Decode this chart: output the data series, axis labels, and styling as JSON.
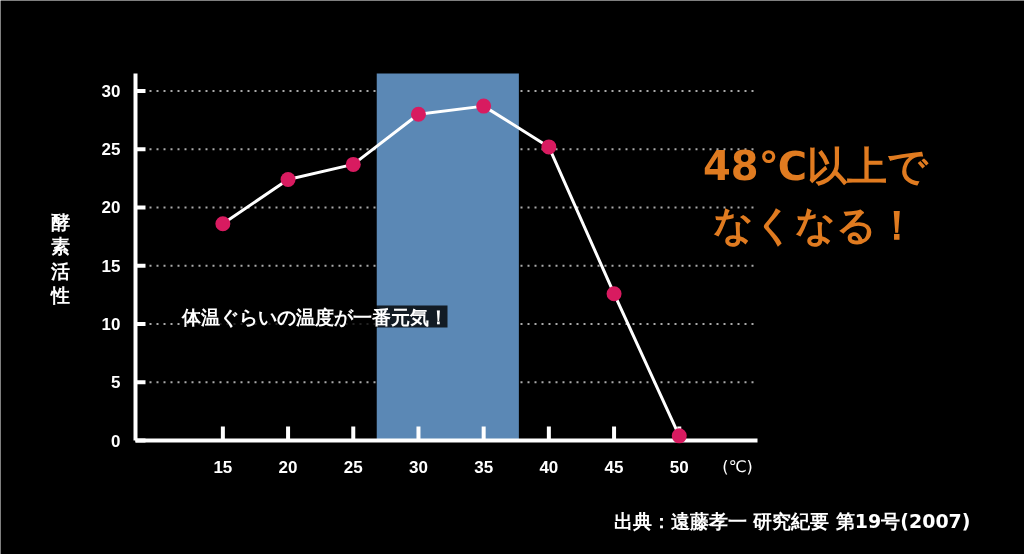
{
  "chart_data": {
    "type": "line",
    "x": [
      15,
      20,
      25,
      30,
      35,
      40,
      45,
      50
    ],
    "series": [
      {
        "color": "#ffffff",
        "colors": [
          "#d81b60",
          "#d81b60",
          "#d81b60",
          "#d81b60",
          "#d81b60",
          "#d81b60",
          "#d81b60",
          "#d81b60"
        ],
        "values": [
          18.6,
          22.4,
          23.7,
          28.0,
          28.7,
          25.2,
          12.6,
          0.4
        ]
      }
    ],
    "xlim": [
      8.3,
      56
    ],
    "ylim": [
      0,
      31.5
    ],
    "xticks": [
      15,
      20,
      25,
      30,
      35,
      40,
      45,
      50
    ],
    "yticks": [
      0,
      5,
      10,
      15,
      20,
      25,
      30
    ],
    "xlabel": "(℃)",
    "ylabel": "酵素活性",
    "grid": "y",
    "marker": "circle",
    "line_style": "solid",
    "bands": [
      {
        "axis": "x",
        "from": 26.8,
        "to": 37.7,
        "color": "#5b88b5"
      }
    ],
    "annotations": [
      "体温ぐらいの温度が一番元気！",
      "48℃以上でなくなる！",
      "出典：遠藤孝一 研究紀要 第19号(2007)"
    ]
  }
}
